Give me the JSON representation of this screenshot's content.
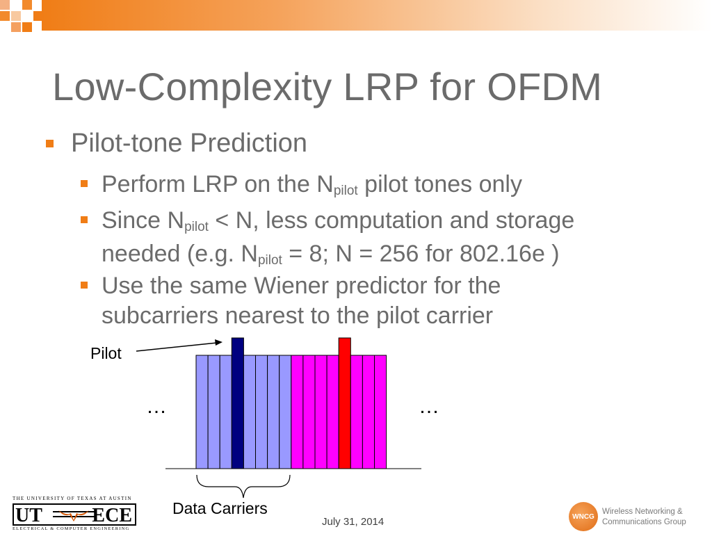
{
  "slide": {
    "title": "Low-Complexity LRP for OFDM",
    "bullets": {
      "l1": "Pilot-tone Prediction",
      "b1_pre": "Perform LRP on the N",
      "b1_sub": "pilot",
      "b1_post": " pilot tones only",
      "b2_line1_pre": "Since N",
      "b2_line1_sub": "pilot",
      "b2_line1_post": " < N, less computation and storage",
      "b2_line2_pre": "needed (e.g. N",
      "b2_line2_sub": "pilot",
      "b2_line2_post": " = 8; N = 256 for 802.16e )",
      "b3_line1": "Use the same Wiener predictor for the",
      "b3_line2": "subcarriers nearest to the pilot carrier"
    },
    "date": "July 31, 2014"
  },
  "diagram": {
    "pilot_label": "Pilot",
    "data_carriers_label": "Data Carriers",
    "ellipsis_left": "…",
    "ellipsis_right": "…",
    "groups": [
      {
        "color": "#9999ff",
        "carriers": 8,
        "pilot_index": 3,
        "pilot_color": "#000080"
      },
      {
        "color": "#ff00ff",
        "carriers": 8,
        "pilot_index": 4,
        "pilot_color": "#ff0000"
      }
    ]
  },
  "logos": {
    "ut_top": "THE UNIVERSITY OF TEXAS AT AUSTIN",
    "ut_left": "UT",
    "ut_right": "ECE",
    "ut_bottom": "ELECTRICAL & COMPUTER ENGINEERING",
    "wncg_badge": "WNCG",
    "wncg_line1": "Wireless Networking &",
    "wncg_line2": "Communications Group"
  },
  "colors": {
    "accent": "#f07d16",
    "text": "#6b6b6b"
  }
}
